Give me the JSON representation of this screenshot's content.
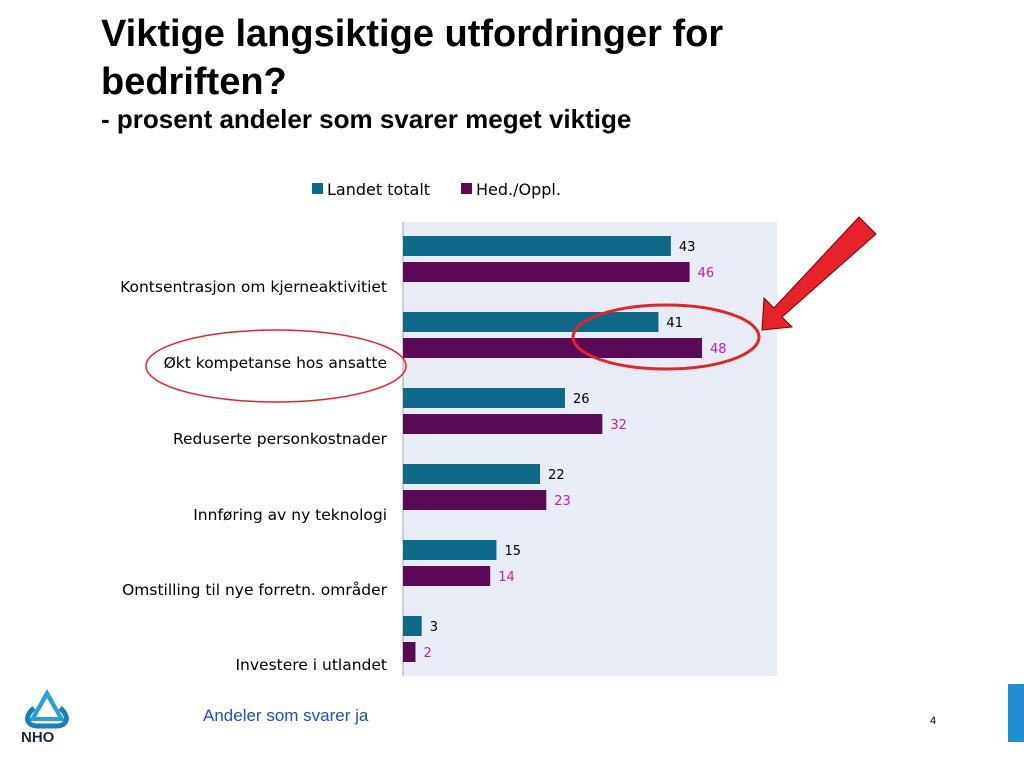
{
  "slide": {
    "title": "Viktige langsiktige utfordringer for bedriften?",
    "subtitle": "- prosent andeler som svarer meget viktige",
    "footnote": "Andeler som svarer ja",
    "page_number": "4",
    "logo_text": "NHO"
  },
  "colors": {
    "series1": "#0d6987",
    "series2": "#5a0a54",
    "label2": "#c020b0",
    "plot_bg": "#e8ecf4",
    "highlight": "#e8222a"
  },
  "chart_data": {
    "type": "bar",
    "orientation": "horizontal",
    "categories": [
      "Kontsentrasjon om kjerneaktivitiet",
      "Økt kompetanse hos ansatte",
      "Reduserte personkostnader",
      "Innføring av ny teknologi",
      "Omstilling til nye forretn. områder",
      "Investere i utlandet"
    ],
    "series": [
      {
        "name": "Landet totalt",
        "values": [
          43,
          41,
          26,
          22,
          15,
          3
        ]
      },
      {
        "name": "Hed./Oppl.",
        "values": [
          46,
          48,
          32,
          23,
          14,
          2
        ]
      }
    ],
    "xlim": [
      0,
      60
    ],
    "legend": "top",
    "grid": false,
    "highlighted_category": "Økt kompetanse hos ansatte"
  }
}
